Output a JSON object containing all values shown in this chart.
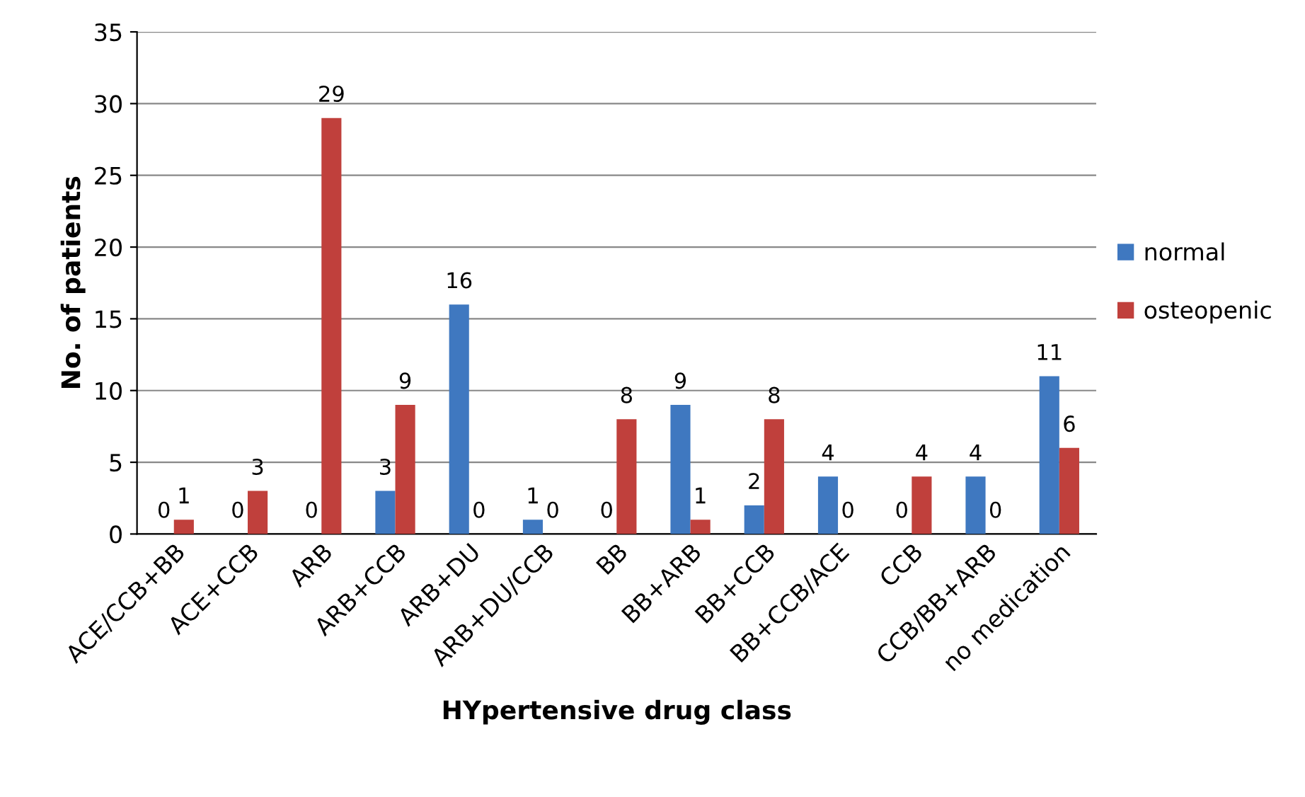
{
  "chart_data": {
    "type": "bar",
    "xlabel": "HYpertensive drug class",
    "ylabel": "No. of patients",
    "categories": [
      "ACE/CCB+BB",
      "ACE+CCB",
      "ARB",
      "ARB+CCB",
      "ARB+DU",
      "ARB+DU/CCB",
      "BB",
      "BB+ARB",
      "BB+CCB",
      "BB+CCB/ACE",
      "CCB",
      "CCB/BB+ARB",
      "no medication"
    ],
    "series": [
      {
        "name": "normal",
        "color": "#3f78c0",
        "values": [
          0,
          0,
          0,
          3,
          16,
          1,
          0,
          9,
          2,
          4,
          0,
          4,
          11
        ]
      },
      {
        "name": "osteopenic",
        "color": "#c0403c",
        "values": [
          1,
          3,
          29,
          9,
          0,
          0,
          8,
          1,
          8,
          0,
          4,
          0,
          6
        ]
      }
    ],
    "ylim": [
      0,
      35
    ],
    "yticks": [
      0,
      5,
      10,
      15,
      20,
      25,
      30,
      35
    ],
    "grid": "y",
    "legend": "right",
    "data_labels": true
  }
}
